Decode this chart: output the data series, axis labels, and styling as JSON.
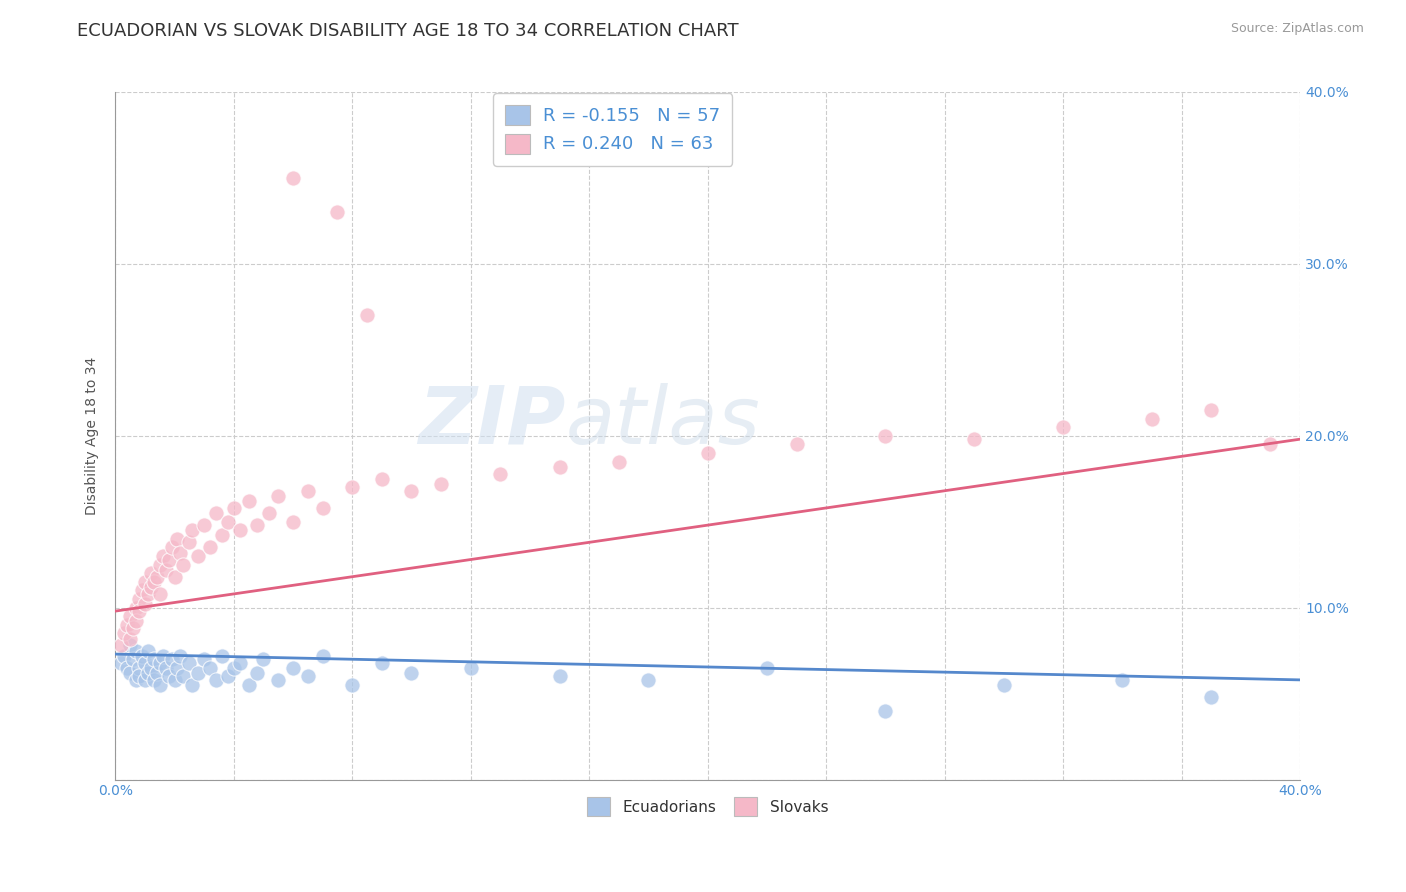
{
  "title": "ECUADORIAN VS SLOVAK DISABILITY AGE 18 TO 34 CORRELATION CHART",
  "source": "Source: ZipAtlas.com",
  "ylabel": "Disability Age 18 to 34",
  "xlim": [
    0.0,
    0.4
  ],
  "ylim": [
    0.0,
    0.4
  ],
  "legend1_R": "-0.155",
  "legend1_N": "57",
  "legend2_R": "0.240",
  "legend2_N": "63",
  "blue_color": "#a8c4e8",
  "pink_color": "#f5b8c8",
  "blue_line_color": "#5588cc",
  "pink_line_color": "#e06080",
  "title_fontsize": 13,
  "label_fontsize": 10,
  "ecuadorian_x": [
    0.002,
    0.003,
    0.004,
    0.005,
    0.005,
    0.006,
    0.007,
    0.007,
    0.008,
    0.008,
    0.009,
    0.01,
    0.01,
    0.011,
    0.011,
    0.012,
    0.013,
    0.013,
    0.014,
    0.015,
    0.015,
    0.016,
    0.017,
    0.018,
    0.019,
    0.02,
    0.021,
    0.022,
    0.023,
    0.025,
    0.026,
    0.028,
    0.03,
    0.032,
    0.034,
    0.036,
    0.038,
    0.04,
    0.042,
    0.045,
    0.048,
    0.05,
    0.055,
    0.06,
    0.065,
    0.07,
    0.08,
    0.09,
    0.1,
    0.12,
    0.15,
    0.18,
    0.22,
    0.26,
    0.3,
    0.34,
    0.37
  ],
  "ecuadorian_y": [
    0.068,
    0.072,
    0.065,
    0.078,
    0.062,
    0.07,
    0.058,
    0.075,
    0.065,
    0.06,
    0.072,
    0.068,
    0.058,
    0.062,
    0.075,
    0.065,
    0.058,
    0.07,
    0.062,
    0.068,
    0.055,
    0.072,
    0.065,
    0.06,
    0.07,
    0.058,
    0.065,
    0.072,
    0.06,
    0.068,
    0.055,
    0.062,
    0.07,
    0.065,
    0.058,
    0.072,
    0.06,
    0.065,
    0.068,
    0.055,
    0.062,
    0.07,
    0.058,
    0.065,
    0.06,
    0.072,
    0.055,
    0.068,
    0.062,
    0.065,
    0.06,
    0.058,
    0.065,
    0.04,
    0.055,
    0.058,
    0.048
  ],
  "slovak_x": [
    0.002,
    0.003,
    0.004,
    0.005,
    0.005,
    0.006,
    0.007,
    0.007,
    0.008,
    0.008,
    0.009,
    0.01,
    0.01,
    0.011,
    0.012,
    0.012,
    0.013,
    0.014,
    0.015,
    0.015,
    0.016,
    0.017,
    0.018,
    0.019,
    0.02,
    0.021,
    0.022,
    0.023,
    0.025,
    0.026,
    0.028,
    0.03,
    0.032,
    0.034,
    0.036,
    0.038,
    0.04,
    0.042,
    0.045,
    0.048,
    0.052,
    0.055,
    0.06,
    0.065,
    0.07,
    0.08,
    0.09,
    0.1,
    0.11,
    0.13,
    0.15,
    0.17,
    0.2,
    0.23,
    0.26,
    0.29,
    0.32,
    0.35,
    0.37,
    0.39,
    0.06,
    0.075,
    0.085
  ],
  "slovak_y": [
    0.078,
    0.085,
    0.09,
    0.082,
    0.095,
    0.088,
    0.1,
    0.092,
    0.105,
    0.098,
    0.11,
    0.102,
    0.115,
    0.108,
    0.112,
    0.12,
    0.115,
    0.118,
    0.108,
    0.125,
    0.13,
    0.122,
    0.128,
    0.135,
    0.118,
    0.14,
    0.132,
    0.125,
    0.138,
    0.145,
    0.13,
    0.148,
    0.135,
    0.155,
    0.142,
    0.15,
    0.158,
    0.145,
    0.162,
    0.148,
    0.155,
    0.165,
    0.15,
    0.168,
    0.158,
    0.17,
    0.175,
    0.168,
    0.172,
    0.178,
    0.182,
    0.185,
    0.19,
    0.195,
    0.2,
    0.198,
    0.205,
    0.21,
    0.215,
    0.195,
    0.35,
    0.33,
    0.27
  ],
  "blue_trend_x": [
    0.0,
    0.4
  ],
  "blue_trend_y": [
    0.073,
    0.058
  ],
  "pink_trend_x": [
    0.0,
    0.4
  ],
  "pink_trend_y": [
    0.098,
    0.198
  ]
}
